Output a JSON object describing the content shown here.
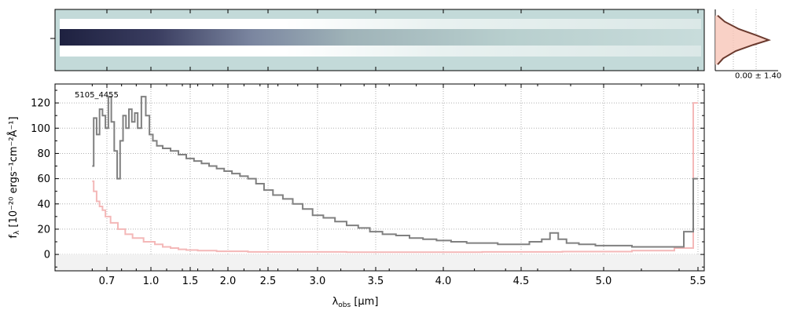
{
  "chart_data": {
    "type": "line",
    "object_label": "5105_4455",
    "xlabel_main": "λ",
    "xlabel_sub": "obs",
    "xlabel_unit": " [μm]",
    "ylabel_main": "f",
    "ylabel_sub": "λ",
    "ylabel_unit": " [10⁻²⁰ ergs⁻¹cm⁻²Å⁻¹]",
    "x_tick_labels": [
      "0.7",
      "1.0",
      "1.5",
      "2.0",
      "2.5",
      "3.0",
      "3.5",
      "4.0",
      "4.5",
      "5.0",
      "5.5"
    ],
    "x_tick_values": [
      0.7,
      1.0,
      1.5,
      2.0,
      2.5,
      3.0,
      3.5,
      4.0,
      4.5,
      5.0,
      5.5
    ],
    "y_tick_labels": [
      "0",
      "20",
      "40",
      "60",
      "80",
      "100",
      "120"
    ],
    "y_tick_values": [
      0,
      20,
      40,
      60,
      80,
      100,
      120
    ],
    "ylim": [
      -13,
      135
    ],
    "grid": true,
    "side_panel_label": "0.00 ± 1.40",
    "colors": {
      "flux": "#808080",
      "error": "#f4b8b8",
      "side_profile": "#6b3a2e",
      "side_fill": "#f7c5b8",
      "spectrum_bg": "#c3dad9",
      "grid": "#b0b0b0"
    },
    "series": [
      {
        "name": "",
        "x": [
          0.6,
          0.62,
          0.64,
          0.66,
          0.68,
          0.7,
          0.72,
          0.74,
          0.76,
          0.78,
          0.8,
          0.82,
          0.84,
          0.86,
          0.88,
          0.9,
          0.92,
          0.95,
          0.98,
          1.0,
          1.05,
          1.1,
          1.2,
          1.3,
          1.4,
          1.5,
          1.6,
          1.7,
          1.8,
          1.9,
          2.0,
          2.1,
          2.2,
          2.3,
          2.4,
          2.5,
          2.6,
          2.7,
          2.8,
          2.9,
          3.0,
          3.1,
          3.2,
          3.3,
          3.4,
          3.5,
          3.6,
          3.7,
          3.8,
          3.9,
          4.0,
          4.1,
          4.2,
          4.3,
          4.4,
          4.5,
          4.6,
          4.65,
          4.7,
          4.75,
          4.8,
          4.9,
          5.0,
          5.1,
          5.2,
          5.3,
          5.4,
          5.45,
          5.5
        ],
        "values": [
          70,
          108,
          95,
          115,
          110,
          100,
          125,
          105,
          82,
          60,
          90,
          110,
          100,
          115,
          105,
          112,
          100,
          125,
          110,
          95,
          90,
          86,
          84,
          82,
          79,
          76,
          74,
          72,
          70,
          68,
          66,
          64,
          62,
          60,
          56,
          51,
          47,
          44,
          40,
          36,
          31,
          29,
          26,
          23,
          21,
          18,
          16,
          15,
          13,
          12,
          11,
          10,
          9,
          9,
          8,
          8,
          10,
          12,
          17,
          12,
          9,
          8,
          7,
          7,
          6,
          6,
          6,
          18,
          60
        ]
      },
      {
        "name": "",
        "x": [
          0.6,
          0.62,
          0.64,
          0.66,
          0.68,
          0.7,
          0.75,
          0.8,
          0.85,
          0.9,
          1.0,
          1.1,
          1.2,
          1.3,
          1.4,
          1.5,
          1.7,
          2.0,
          2.5,
          3.0,
          3.5,
          4.0,
          4.5,
          5.0,
          5.3,
          5.45,
          5.5
        ],
        "values": [
          58,
          50,
          42,
          38,
          35,
          30,
          25,
          20,
          16,
          13,
          10,
          8,
          6,
          5,
          4,
          3.5,
          3,
          2.5,
          2,
          2,
          1.8,
          1.8,
          2,
          2.2,
          3,
          5,
          120
        ]
      }
    ],
    "side_profile": {
      "x": [
        3,
        12,
        30,
        52,
        68,
        48,
        26,
        10,
        3
      ],
      "y": [
        0.1,
        0.2,
        0.32,
        0.42,
        0.5,
        0.58,
        0.68,
        0.8,
        0.9
      ]
    }
  }
}
